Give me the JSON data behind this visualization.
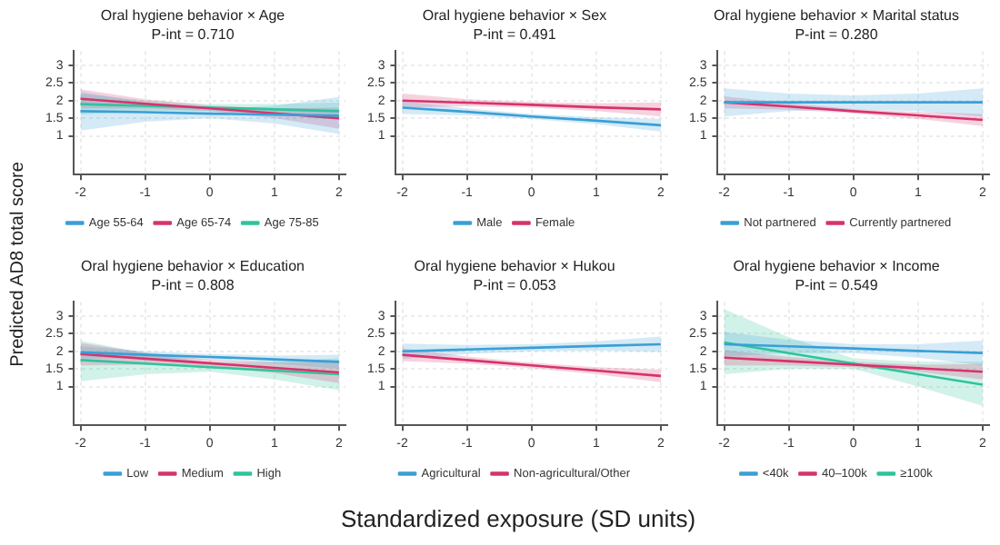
{
  "chart_data": [
    {
      "type": "line",
      "title": "Oral hygiene behavior × Age",
      "subtitle": "P-int = 0.710",
      "ylabel": "Predicted AD8 total score",
      "x": [
        -2,
        -1,
        0,
        1,
        2
      ],
      "xlim": [
        -2.1,
        2.1
      ],
      "xticks": [
        -2,
        -1,
        0,
        1,
        2
      ],
      "ylim": [
        -0.1,
        3.4
      ],
      "yticks": [
        1,
        1.5,
        2,
        2.5,
        3
      ],
      "grid": true,
      "legend": "bottom",
      "series": [
        {
          "name": "Age 55-64",
          "color": "#3a9fd6",
          "values": [
            1.7,
            1.67,
            1.63,
            1.6,
            1.57
          ],
          "lower": [
            1.15,
            1.4,
            1.5,
            1.35,
            1.05
          ],
          "upper": [
            2.25,
            1.95,
            1.76,
            1.85,
            2.1
          ]
        },
        {
          "name": "Age 65-74",
          "color": "#d6336c",
          "values": [
            2.05,
            1.91,
            1.78,
            1.64,
            1.5
          ],
          "lower": [
            1.78,
            1.78,
            1.7,
            1.5,
            1.2
          ],
          "upper": [
            2.32,
            2.04,
            1.86,
            1.78,
            1.8
          ]
        },
        {
          "name": "Age 75-85",
          "color": "#2ec49c",
          "values": [
            1.9,
            1.85,
            1.8,
            1.75,
            1.7
          ],
          "lower": [
            1.6,
            1.7,
            1.7,
            1.6,
            1.45
          ],
          "upper": [
            2.2,
            2.0,
            1.9,
            1.9,
            1.95
          ]
        }
      ]
    },
    {
      "type": "line",
      "title": "Oral hygiene behavior × Sex",
      "subtitle": "P-int = 0.491",
      "x": [
        -2,
        -1,
        0,
        1,
        2
      ],
      "xlim": [
        -2.1,
        2.1
      ],
      "xticks": [
        -2,
        -1,
        0,
        1,
        2
      ],
      "ylim": [
        -0.1,
        3.4
      ],
      "yticks": [
        1,
        1.5,
        2,
        2.5,
        3
      ],
      "grid": true,
      "legend": "bottom",
      "series": [
        {
          "name": "Male",
          "color": "#3a9fd6",
          "values": [
            1.8,
            1.68,
            1.55,
            1.43,
            1.3
          ],
          "lower": [
            1.62,
            1.58,
            1.48,
            1.33,
            1.12
          ],
          "upper": [
            1.98,
            1.78,
            1.62,
            1.53,
            1.48
          ]
        },
        {
          "name": "Female",
          "color": "#d6336c",
          "values": [
            2.0,
            1.94,
            1.88,
            1.81,
            1.75
          ],
          "lower": [
            1.8,
            1.84,
            1.8,
            1.7,
            1.55
          ],
          "upper": [
            2.2,
            2.04,
            1.96,
            1.92,
            1.95
          ]
        }
      ]
    },
    {
      "type": "line",
      "title": "Oral hygiene behavior × Marital status",
      "subtitle": "P-int = 0.280",
      "x": [
        -2,
        -1,
        0,
        1,
        2
      ],
      "xlim": [
        -2.1,
        2.1
      ],
      "xticks": [
        -2,
        -1,
        0,
        1,
        2
      ],
      "ylim": [
        -0.1,
        3.4
      ],
      "yticks": [
        1,
        1.5,
        2,
        2.5,
        3
      ],
      "grid": true,
      "legend": "bottom",
      "series": [
        {
          "name": "Not partnered",
          "color": "#3a9fd6",
          "values": [
            1.95,
            1.95,
            1.95,
            1.95,
            1.95
          ],
          "lower": [
            1.55,
            1.7,
            1.75,
            1.7,
            1.55
          ],
          "upper": [
            2.35,
            2.2,
            2.15,
            2.2,
            2.35
          ]
        },
        {
          "name": "Currently partnered",
          "color": "#d6336c",
          "values": [
            1.95,
            1.83,
            1.7,
            1.58,
            1.45
          ],
          "lower": [
            1.78,
            1.74,
            1.64,
            1.48,
            1.28
          ],
          "upper": [
            2.12,
            1.92,
            1.76,
            1.68,
            1.62
          ]
        }
      ]
    },
    {
      "type": "line",
      "title": "Oral hygiene behavior × Education",
      "subtitle": "P-int = 0.808",
      "xlabel": "Standardized exposure (SD units)",
      "x": [
        -2,
        -1,
        0,
        1,
        2
      ],
      "xlim": [
        -2.1,
        2.1
      ],
      "xticks": [
        -2,
        -1,
        0,
        1,
        2
      ],
      "ylim": [
        -0.1,
        3.4
      ],
      "yticks": [
        1,
        1.5,
        2,
        2.5,
        3
      ],
      "grid": true,
      "legend": "bottom",
      "series": [
        {
          "name": "Low",
          "color": "#3a9fd6",
          "values": [
            1.97,
            1.9,
            1.84,
            1.77,
            1.7
          ],
          "lower": [
            1.8,
            1.8,
            1.76,
            1.66,
            1.5
          ],
          "upper": [
            2.14,
            2.0,
            1.92,
            1.88,
            1.9
          ]
        },
        {
          "name": "Medium",
          "color": "#d6336c",
          "values": [
            1.92,
            1.79,
            1.66,
            1.53,
            1.4
          ],
          "lower": [
            1.6,
            1.62,
            1.56,
            1.38,
            1.1
          ],
          "upper": [
            2.24,
            1.96,
            1.76,
            1.68,
            1.7
          ]
        },
        {
          "name": "High",
          "color": "#2ec49c",
          "values": [
            1.75,
            1.65,
            1.55,
            1.45,
            1.35
          ],
          "lower": [
            1.15,
            1.35,
            1.42,
            1.2,
            0.9
          ],
          "upper": [
            2.3,
            1.95,
            1.68,
            1.7,
            1.8
          ]
        }
      ]
    },
    {
      "type": "line",
      "title": "Oral hygiene behavior × Hukou",
      "subtitle": "P-int = 0.053",
      "x": [
        -2,
        -1,
        0,
        1,
        2
      ],
      "xlim": [
        -2.1,
        2.1
      ],
      "xticks": [
        -2,
        -1,
        0,
        1,
        2
      ],
      "ylim": [
        -0.1,
        3.4
      ],
      "yticks": [
        1,
        1.5,
        2,
        2.5,
        3
      ],
      "grid": true,
      "legend": "bottom",
      "series": [
        {
          "name": "Agricultural",
          "color": "#3a9fd6",
          "values": [
            2.0,
            2.05,
            2.1,
            2.15,
            2.2
          ],
          "lower": [
            1.78,
            1.92,
            2.0,
            2.02,
            1.98
          ],
          "upper": [
            2.22,
            2.18,
            2.2,
            2.28,
            2.42
          ]
        },
        {
          "name": "Non-agricultural/Other",
          "color": "#d6336c",
          "values": [
            1.9,
            1.75,
            1.6,
            1.45,
            1.3
          ],
          "lower": [
            1.72,
            1.65,
            1.52,
            1.35,
            1.12
          ],
          "upper": [
            2.08,
            1.85,
            1.68,
            1.55,
            1.48
          ]
        }
      ]
    },
    {
      "type": "line",
      "title": "Oral hygiene behavior × Income",
      "subtitle": "P-int = 0.549",
      "x": [
        -2,
        -1,
        0,
        1,
        2
      ],
      "xlim": [
        -2.1,
        2.1
      ],
      "xticks": [
        -2,
        -1,
        0,
        1,
        2
      ],
      "ylim": [
        -0.1,
        3.4
      ],
      "yticks": [
        1,
        1.5,
        2,
        2.5,
        3
      ],
      "grid": true,
      "legend": "bottom",
      "series": [
        {
          "name": "<40k",
          "color": "#3a9fd6",
          "values": [
            2.2,
            2.14,
            2.08,
            2.01,
            1.95
          ],
          "lower": [
            1.85,
            1.95,
            1.95,
            1.82,
            1.6
          ],
          "upper": [
            2.55,
            2.33,
            2.2,
            2.2,
            2.3
          ]
        },
        {
          "name": "40–100k",
          "color": "#d6336c",
          "values": [
            1.82,
            1.72,
            1.62,
            1.52,
            1.42
          ],
          "lower": [
            1.6,
            1.6,
            1.55,
            1.42,
            1.2
          ],
          "upper": [
            2.04,
            1.84,
            1.7,
            1.62,
            1.64
          ]
        },
        {
          "name": "≥100k",
          "color": "#2ec49c",
          "values": [
            2.25,
            1.95,
            1.65,
            1.35,
            1.05
          ],
          "lower": [
            1.35,
            1.5,
            1.5,
            1.0,
            0.45
          ],
          "upper": [
            3.2,
            2.4,
            1.8,
            1.7,
            1.7
          ]
        }
      ]
    }
  ]
}
